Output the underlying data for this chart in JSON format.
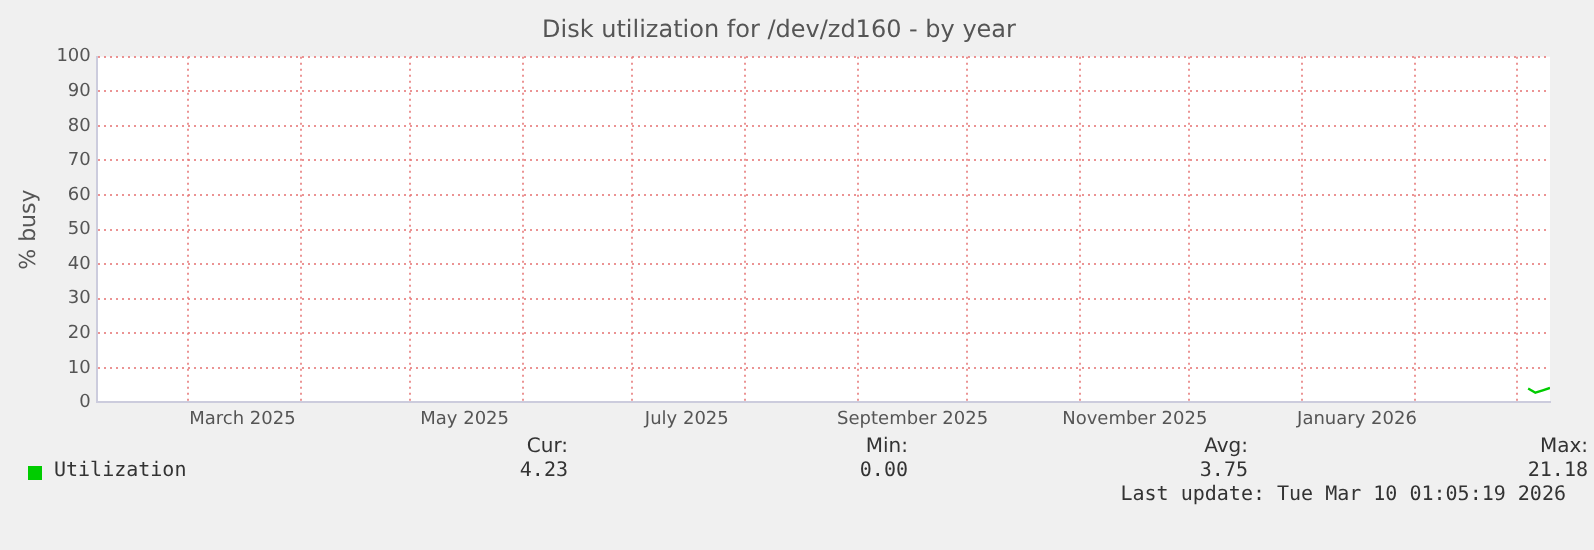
{
  "chart_data": {
    "type": "line",
    "title": "Disk utilization for /dev/zd160 - by year",
    "ylabel": "% busy",
    "x": [
      "2026-03-04",
      "2026-03-06",
      "2026-03-08",
      "2026-03-10"
    ],
    "series": [
      {
        "name": "Utilization",
        "color": "#00cc00",
        "values": [
          4,
          2.8,
          3.5,
          4.2
        ]
      }
    ],
    "xlim": [
      "2025-02-04",
      "2026-03-10"
    ],
    "xticks": [
      {
        "value": "2025-03-01",
        "label": null
      },
      {
        "value": "2025-03-16",
        "label": "March 2025"
      },
      {
        "value": "2025-04-01",
        "label": null
      },
      {
        "value": "2025-05-01",
        "label": null
      },
      {
        "value": "2025-05-16",
        "label": "May 2025"
      },
      {
        "value": "2025-06-01",
        "label": null
      },
      {
        "value": "2025-07-01",
        "label": null
      },
      {
        "value": "2025-07-16",
        "label": "July 2025"
      },
      {
        "value": "2025-08-01",
        "label": null
      },
      {
        "value": "2025-09-01",
        "label": null
      },
      {
        "value": "2025-09-16",
        "label": "September 2025"
      },
      {
        "value": "2025-10-01",
        "label": null
      },
      {
        "value": "2025-11-01",
        "label": null
      },
      {
        "value": "2025-11-16",
        "label": "November 2025"
      },
      {
        "value": "2025-12-01",
        "label": null
      },
      {
        "value": "2026-01-01",
        "label": null
      },
      {
        "value": "2026-01-16",
        "label": "January 2026"
      },
      {
        "value": "2026-02-01",
        "label": null
      },
      {
        "value": "2026-03-01",
        "label": null
      }
    ],
    "ylim": [
      0,
      100
    ],
    "yticks": [
      0,
      10,
      20,
      30,
      40,
      50,
      60,
      70,
      80,
      90,
      100
    ],
    "grid": true,
    "legend": "bottom",
    "marker": "none",
    "line_style": "solid",
    "annotations": [
      "Cur:",
      "Min:",
      "Avg:",
      "Max:",
      "4.23",
      "0.00",
      "3.75",
      "21.18",
      "Last update: Tue Mar 10 01:05:19 2026"
    ]
  }
}
